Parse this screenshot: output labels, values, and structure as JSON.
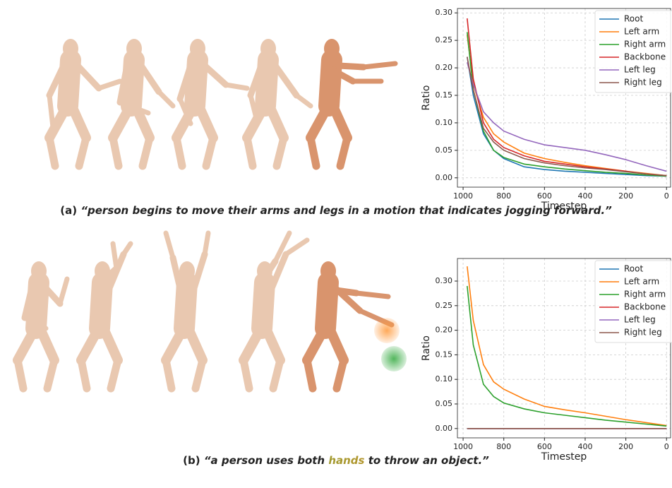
{
  "chart_data": [
    {
      "type": "line",
      "xlabel": "Timestep",
      "ylabel": "Ratio",
      "x": [
        980,
        950,
        900,
        850,
        800,
        700,
        600,
        500,
        400,
        300,
        200,
        100,
        0
      ],
      "xlim": [
        1028,
        -20
      ],
      "xticks": [
        1000,
        800,
        600,
        400,
        200,
        0
      ],
      "ylim": [
        -0.017,
        0.308
      ],
      "yticks": [
        {
          "value": 0,
          "label": "0.00"
        },
        {
          "value": 0.05,
          "label": "0.05"
        },
        {
          "value": 0.1,
          "label": "0.10"
        },
        {
          "value": 0.15,
          "label": "0.15"
        },
        {
          "value": 0.2,
          "label": "0.20"
        },
        {
          "value": 0.25,
          "label": "0.25"
        },
        {
          "value": 0.3,
          "label": "0.30"
        }
      ],
      "grid": true,
      "legend": "upper right",
      "series": [
        {
          "name": "Root",
          "color": "#1f77b4",
          "values": [
            0.22,
            0.15,
            0.08,
            0.05,
            0.035,
            0.02,
            0.015,
            0.012,
            0.01,
            0.008,
            0.006,
            0.004,
            0.003
          ]
        },
        {
          "name": "Left arm",
          "color": "#ff7f0e",
          "values": [
            0.26,
            0.17,
            0.11,
            0.08,
            0.065,
            0.045,
            0.035,
            0.028,
            0.022,
            0.017,
            0.012,
            0.008,
            0.004
          ]
        },
        {
          "name": "Right arm",
          "color": "#2ca02c",
          "values": [
            0.265,
            0.16,
            0.085,
            0.05,
            0.037,
            0.025,
            0.02,
            0.016,
            0.013,
            0.01,
            0.008,
            0.005,
            0.003
          ]
        },
        {
          "name": "Backbone",
          "color": "#d62728",
          "values": [
            0.29,
            0.18,
            0.1,
            0.07,
            0.055,
            0.04,
            0.03,
            0.025,
            0.02,
            0.016,
            0.012,
            0.007,
            0.004
          ]
        },
        {
          "name": "Left leg",
          "color": "#9467bd",
          "values": [
            0.21,
            0.17,
            0.12,
            0.1,
            0.085,
            0.07,
            0.06,
            0.055,
            0.05,
            0.042,
            0.033,
            0.022,
            0.012
          ]
        },
        {
          "name": "Right leg",
          "color": "#8c564b",
          "values": [
            0.22,
            0.16,
            0.09,
            0.065,
            0.05,
            0.035,
            0.027,
            0.022,
            0.018,
            0.015,
            0.011,
            0.007,
            0.004
          ]
        }
      ]
    },
    {
      "type": "line",
      "xlabel": "Timestep",
      "ylabel": "Ratio",
      "x": [
        980,
        950,
        900,
        850,
        800,
        700,
        600,
        500,
        400,
        300,
        200,
        100,
        0
      ],
      "xlim": [
        1028,
        -20
      ],
      "xticks": [
        1000,
        800,
        600,
        400,
        200,
        0
      ],
      "ylim": [
        -0.019,
        0.346
      ],
      "yticks": [
        {
          "value": 0,
          "label": "0.00"
        },
        {
          "value": 0.05,
          "label": "0.05"
        },
        {
          "value": 0.1,
          "label": "0.10"
        },
        {
          "value": 0.15,
          "label": "0.15"
        },
        {
          "value": 0.2,
          "label": "0.20"
        },
        {
          "value": 0.25,
          "label": "0.25"
        },
        {
          "value": 0.3,
          "label": "0.30"
        }
      ],
      "grid": true,
      "legend": "upper right",
      "series": [
        {
          "name": "Root",
          "color": "#1f77b4",
          "values": [
            0,
            0,
            0,
            0,
            0,
            0,
            0,
            0,
            0,
            0,
            0,
            0,
            0
          ]
        },
        {
          "name": "Left arm",
          "color": "#ff7f0e",
          "values": [
            0.33,
            0.22,
            0.13,
            0.095,
            0.08,
            0.06,
            0.045,
            0.038,
            0.032,
            0.025,
            0.018,
            0.012,
            0.006
          ]
        },
        {
          "name": "Right arm",
          "color": "#2ca02c",
          "values": [
            0.29,
            0.17,
            0.09,
            0.065,
            0.052,
            0.04,
            0.032,
            0.027,
            0.022,
            0.017,
            0.013,
            0.009,
            0.005
          ]
        },
        {
          "name": "Backbone",
          "color": "#d62728",
          "values": [
            0,
            0,
            0,
            0,
            0,
            0,
            0,
            0,
            0,
            0,
            0,
            0,
            0
          ]
        },
        {
          "name": "Left leg",
          "color": "#9467bd",
          "values": [
            0,
            0,
            0,
            0,
            0,
            0,
            0,
            0,
            0,
            0,
            0,
            0,
            0
          ]
        },
        {
          "name": "Right leg",
          "color": "#8c564b",
          "values": [
            0,
            0,
            0,
            0,
            0,
            0,
            0,
            0,
            0,
            0,
            0,
            0,
            0
          ]
        }
      ]
    }
  ],
  "captions": [
    {
      "label": "(a)",
      "parts": [
        "“person begins to move their arms and legs in a motion that indicates jogging forward.”"
      ]
    },
    {
      "label": "(b)",
      "parts": [
        "“a person uses both ",
        "hands",
        " to throw an object.”"
      ]
    }
  ]
}
